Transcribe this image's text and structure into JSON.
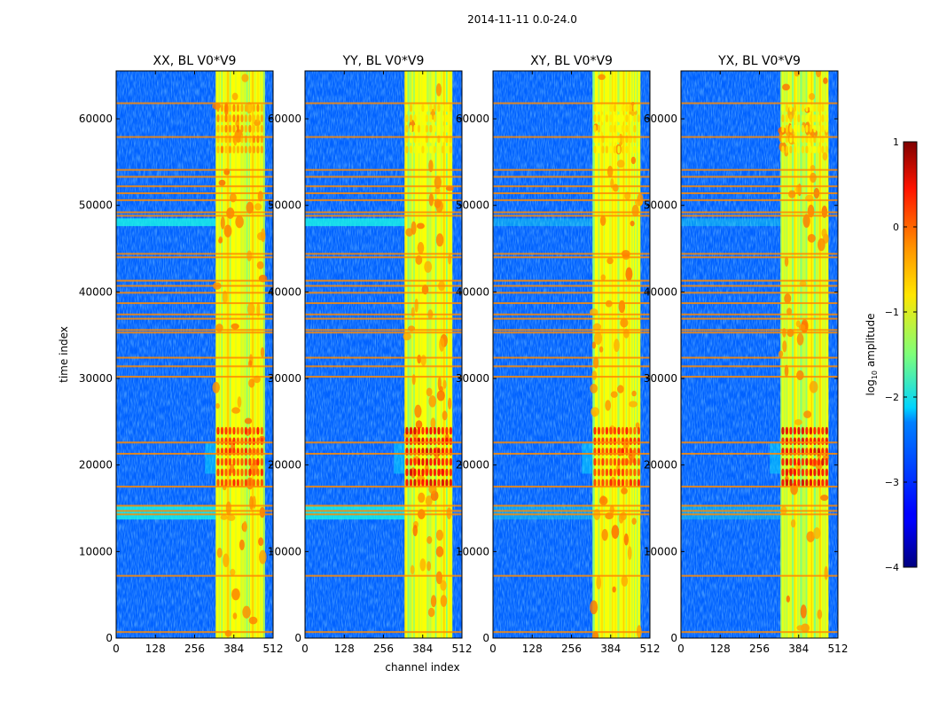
{
  "figure": {
    "suptitle": "2014-11-11 0.0-24.0"
  },
  "chart_data": [
    {
      "type": "heatmap",
      "title": "XX, BL V0*V9",
      "xlabel": "",
      "ylabel": "time index",
      "xlim": [
        0,
        512
      ],
      "ylim": [
        0,
        65536
      ],
      "x_ticks": [
        0,
        128,
        256,
        384,
        512
      ],
      "y_ticks": [
        0,
        10000,
        20000,
        30000,
        40000,
        50000,
        60000
      ],
      "show_y_ticklabels": true
    },
    {
      "type": "heatmap",
      "title": "YY, BL V0*V9",
      "xlabel": "channel index",
      "ylabel": "",
      "xlim": [
        0,
        512
      ],
      "ylim": [
        0,
        65536
      ],
      "x_ticks": [
        0,
        128,
        256,
        384,
        512
      ],
      "y_ticks": [
        0,
        10000,
        20000,
        30000,
        40000,
        50000,
        60000
      ],
      "show_y_ticklabels": true
    },
    {
      "type": "heatmap",
      "title": "XY, BL V0*V9",
      "xlabel": "",
      "ylabel": "",
      "xlim": [
        0,
        512
      ],
      "ylim": [
        0,
        65536
      ],
      "x_ticks": [
        0,
        128,
        256,
        384,
        512
      ],
      "y_ticks": [
        0,
        10000,
        20000,
        30000,
        40000,
        50000,
        60000
      ],
      "show_y_ticklabels": true
    },
    {
      "type": "heatmap",
      "title": "YX, BL V0*V9",
      "xlabel": "",
      "ylabel": "",
      "xlim": [
        0,
        512
      ],
      "ylim": [
        0,
        65536
      ],
      "x_ticks": [
        0,
        128,
        256,
        384,
        512
      ],
      "y_ticks": [
        0,
        10000,
        20000,
        30000,
        40000,
        50000,
        60000
      ],
      "show_y_ticklabels": true
    }
  ],
  "colorbar": {
    "label": "log10 amplitude",
    "label_base": "log",
    "label_sub": "10",
    "label_rest": " amplitude",
    "range": [
      -4,
      1
    ],
    "ticks": [
      1,
      0,
      -1,
      -2,
      -3,
      -4
    ],
    "tick_labels": [
      "1",
      "0",
      "−1",
      "−2",
      "−3",
      "−4"
    ],
    "colormap": "jet"
  },
  "features": {
    "rfi_channel_band": [
      325,
      480
    ],
    "bright_bursts_time": [
      [
        17500,
        24000
      ],
      [
        56000,
        62000
      ]
    ],
    "flagged_rows_time": [
      700,
      7200,
      14300,
      14700,
      15300,
      17500,
      21300,
      22600,
      30200,
      31400,
      32400,
      35300,
      35600,
      36900,
      37400,
      38700,
      39900,
      40700,
      41300,
      44000,
      44400,
      48800,
      49200,
      50600,
      51400,
      52200,
      53300,
      54100,
      57900,
      61800
    ],
    "broadband_bands_time": [
      [
        47600,
        48500
      ],
      [
        13700,
        15300
      ]
    ]
  },
  "colors": {
    "background": "#ffffff",
    "axes": "#000000"
  }
}
